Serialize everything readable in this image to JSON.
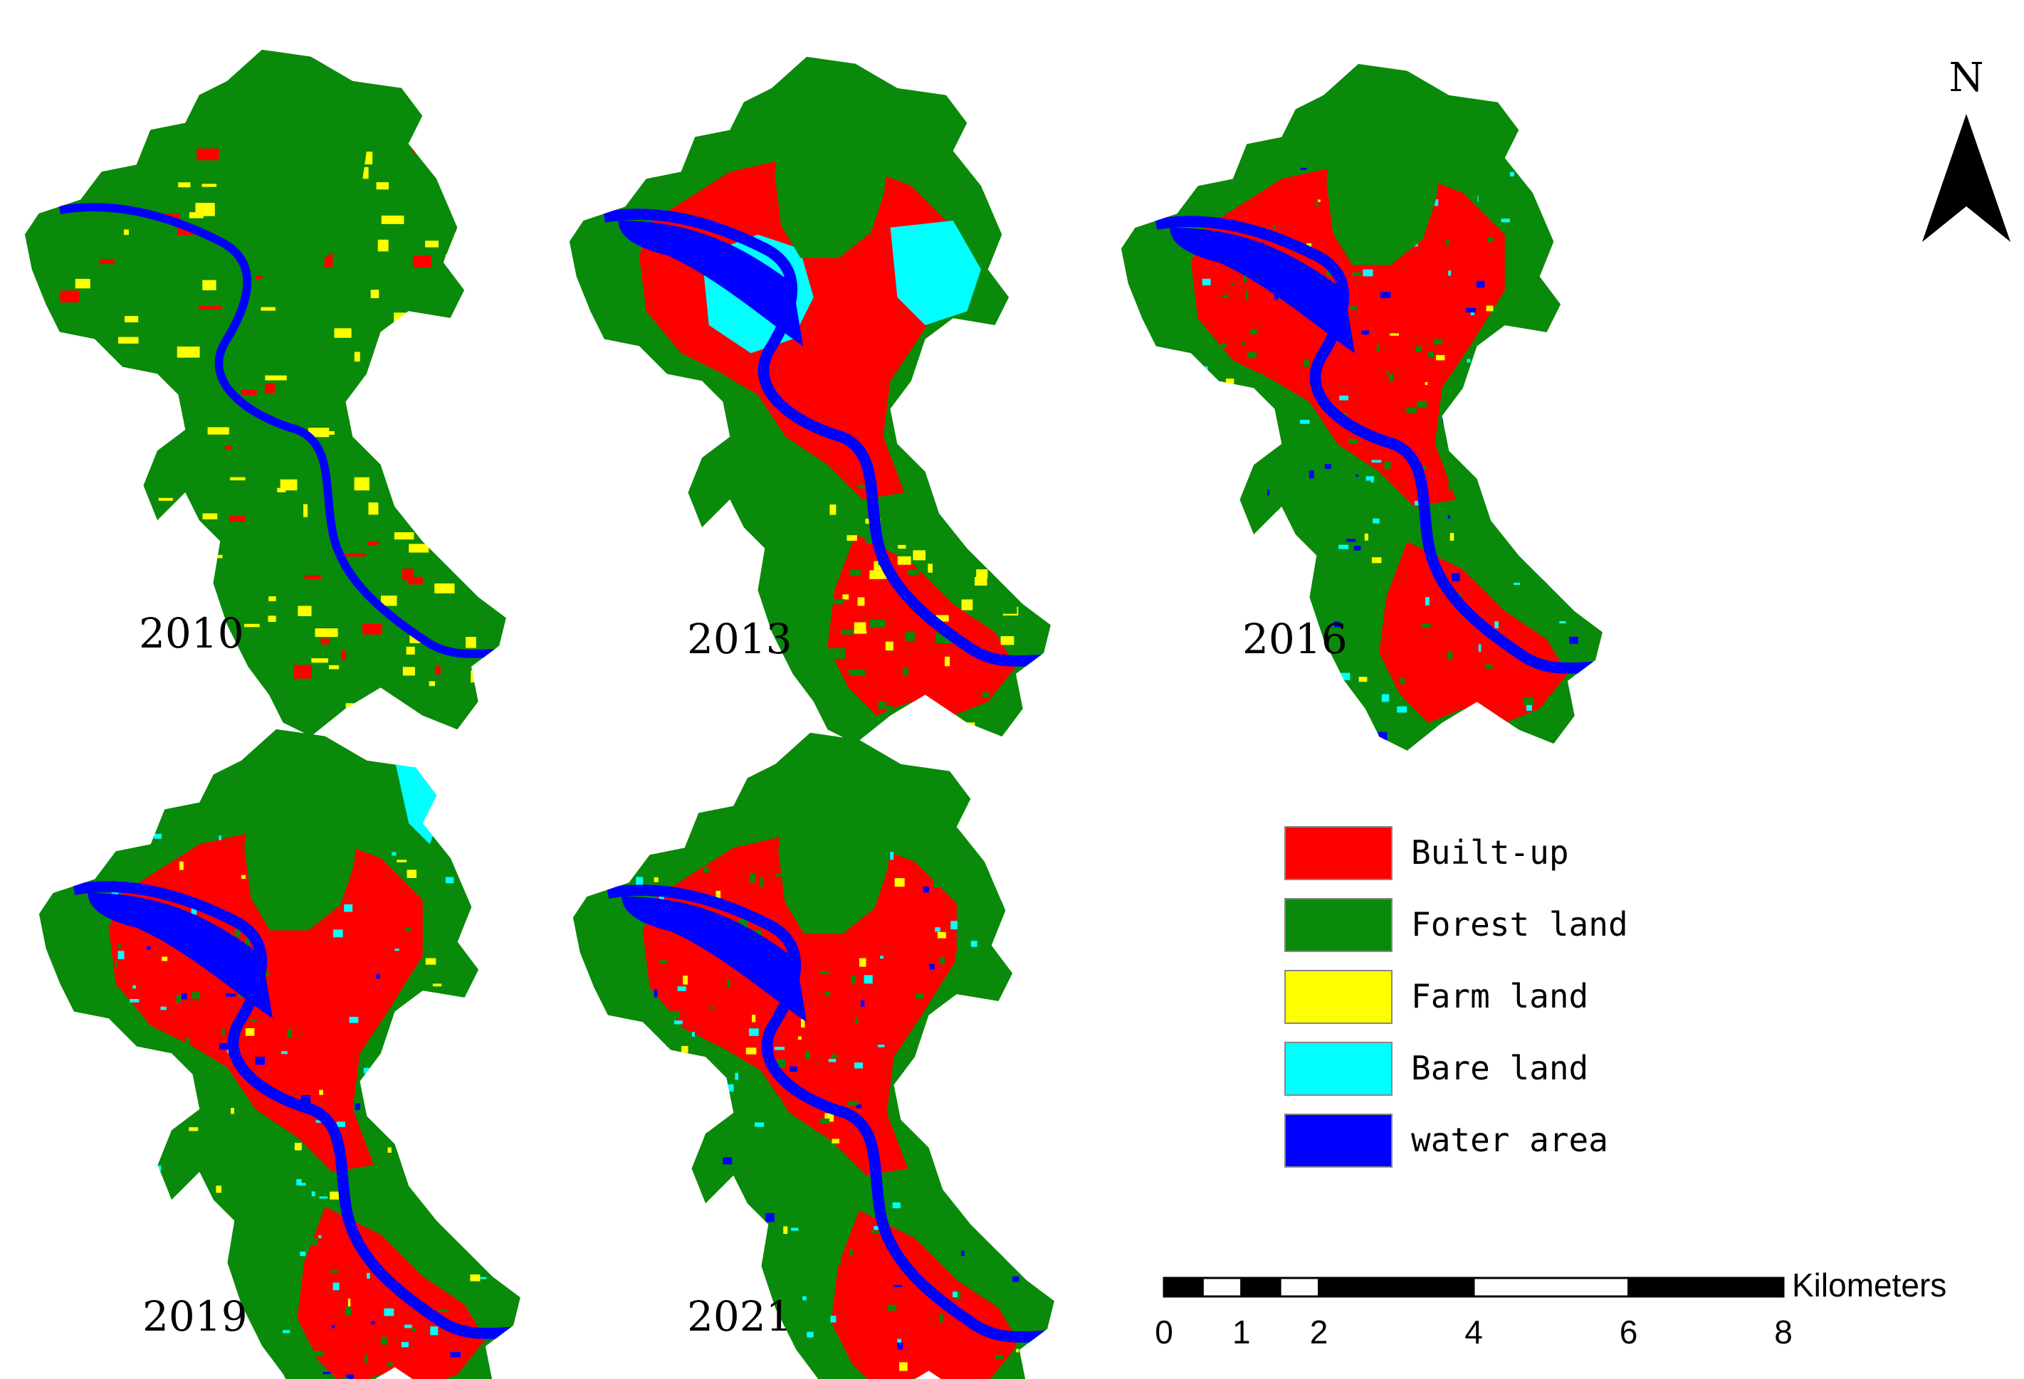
{
  "maps": [
    {
      "year": "2010",
      "scheme": "forest"
    },
    {
      "year": "2013",
      "scheme": "bare"
    },
    {
      "year": "2016",
      "scheme": "urban"
    },
    {
      "year": "2019",
      "scheme": "urban2"
    },
    {
      "year": "2021",
      "scheme": "urban3"
    }
  ],
  "legend": {
    "items": [
      {
        "label": "Built-up",
        "color": "#ff0000"
      },
      {
        "label": "Forest land",
        "color": "#0a8a0a"
      },
      {
        "label": "Farm land",
        "color": "#ffff00"
      },
      {
        "label": "Bare land",
        "color": "#00ffff"
      },
      {
        "label": "water area",
        "color": "#0000ff"
      }
    ]
  },
  "north_arrow": {
    "label": "N"
  },
  "scale_bar": {
    "unit": "Kilometers",
    "ticks": [
      "0",
      "1",
      "2",
      "4",
      "6",
      "8"
    ],
    "tick_values": [
      0,
      1,
      2,
      4,
      6,
      8
    ],
    "max": 8
  }
}
